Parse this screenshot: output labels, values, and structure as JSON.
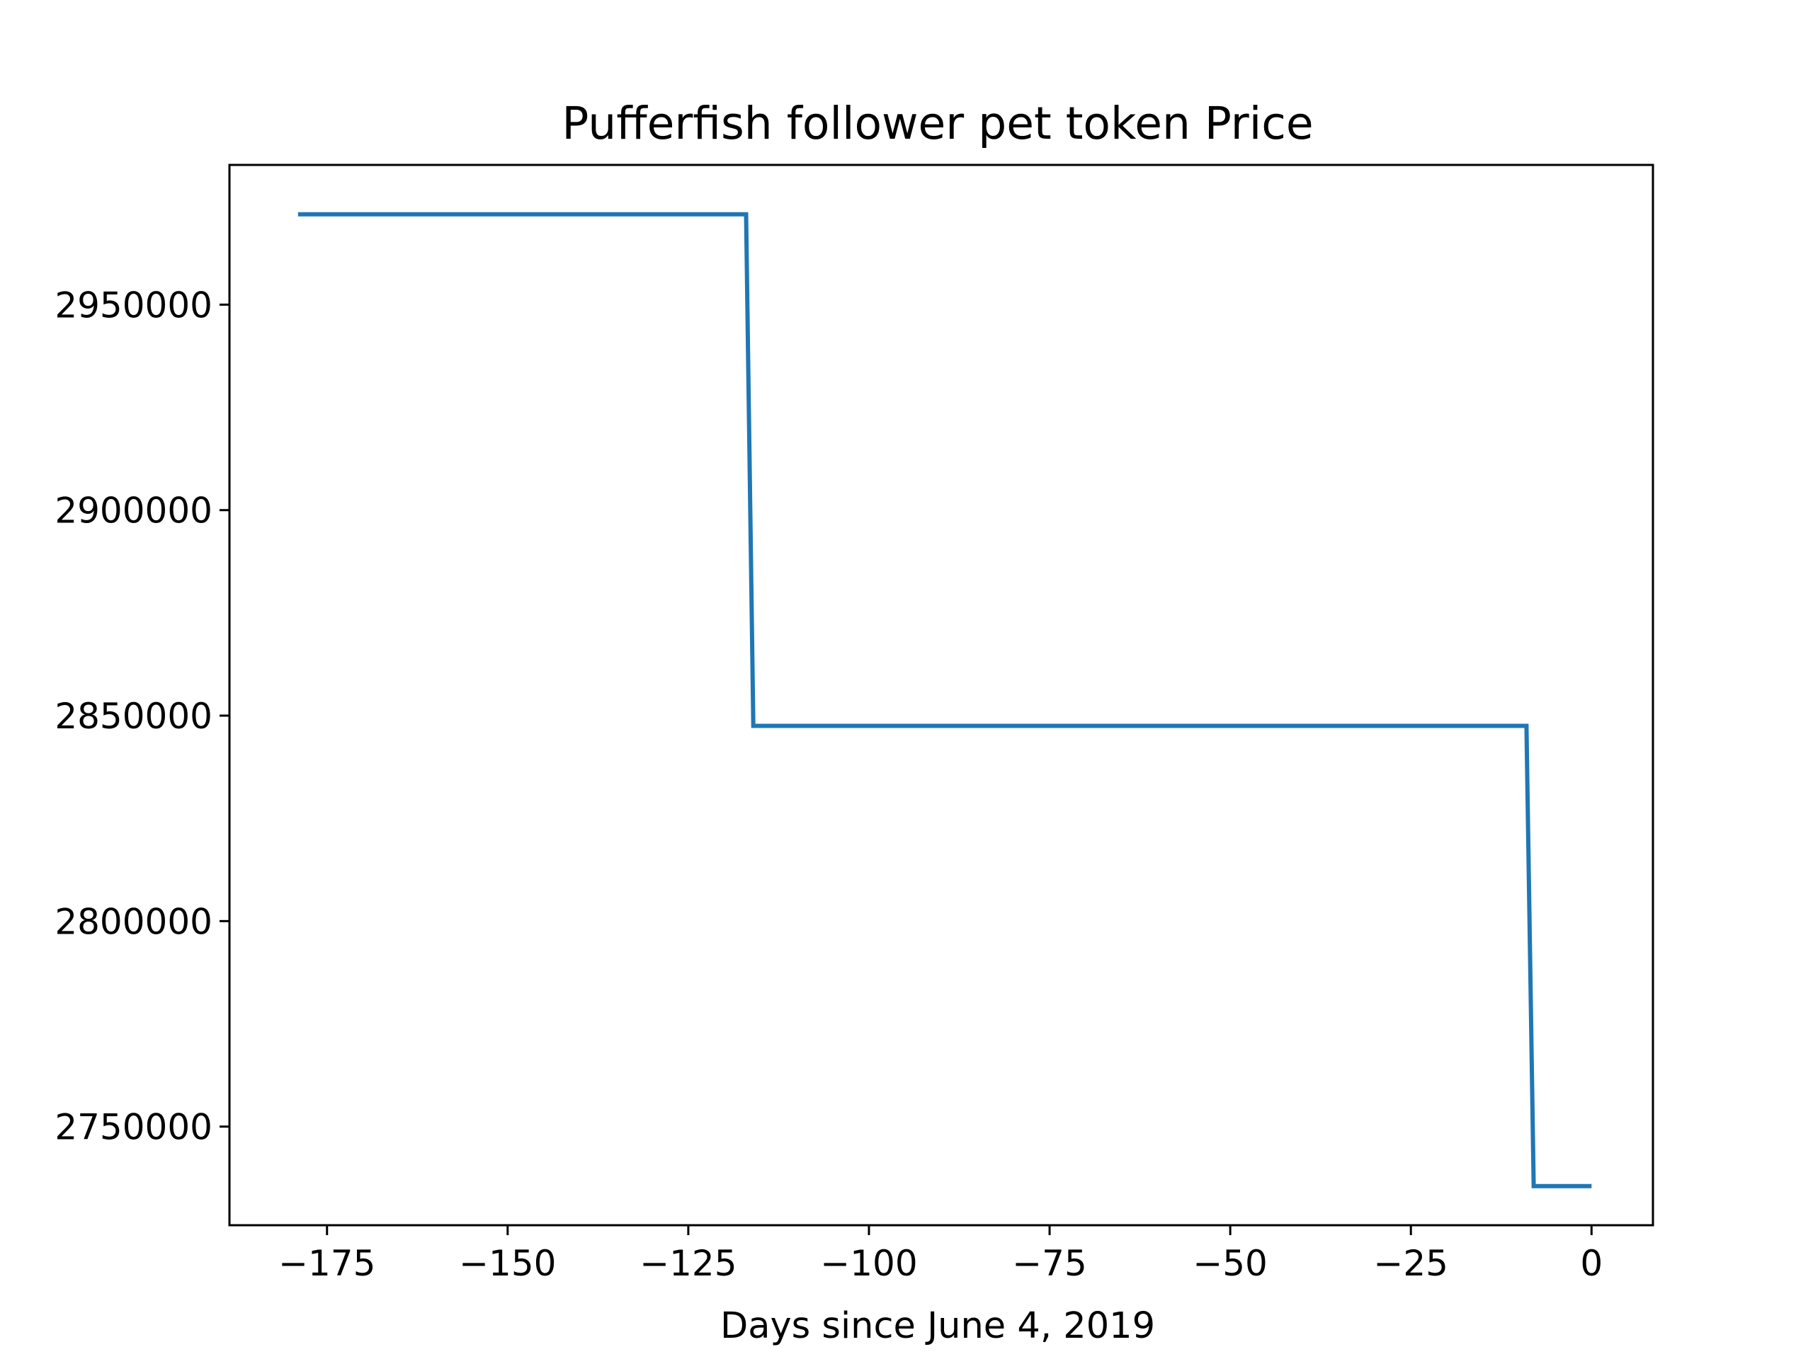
{
  "chart_data": {
    "type": "line",
    "title": "Pufferfish follower pet token Price",
    "xlabel": "Days since June 4, 2019",
    "ylabel": "",
    "xlim": [
      -188.5,
      8.5
    ],
    "ylim": [
      2726000,
      2984000
    ],
    "x_ticks": [
      -175,
      -150,
      -125,
      -100,
      -75,
      -50,
      -25,
      0
    ],
    "x_tick_labels": [
      "−175",
      "−150",
      "−125",
      "−100",
      "−75",
      "−50",
      "−25",
      "0"
    ],
    "y_ticks": [
      2750000,
      2800000,
      2850000,
      2900000,
      2950000
    ],
    "y_tick_labels": [
      "2750000",
      "2800000",
      "2850000",
      "2900000",
      "2950000"
    ],
    "grid": false,
    "series": [
      {
        "name": "",
        "color": "#1f77b4",
        "x": [
          -179,
          -117,
          -116,
          -9,
          -8,
          0
        ],
        "y": [
          2972000,
          2972000,
          2847500,
          2847500,
          2735500,
          2735500
        ]
      }
    ]
  }
}
